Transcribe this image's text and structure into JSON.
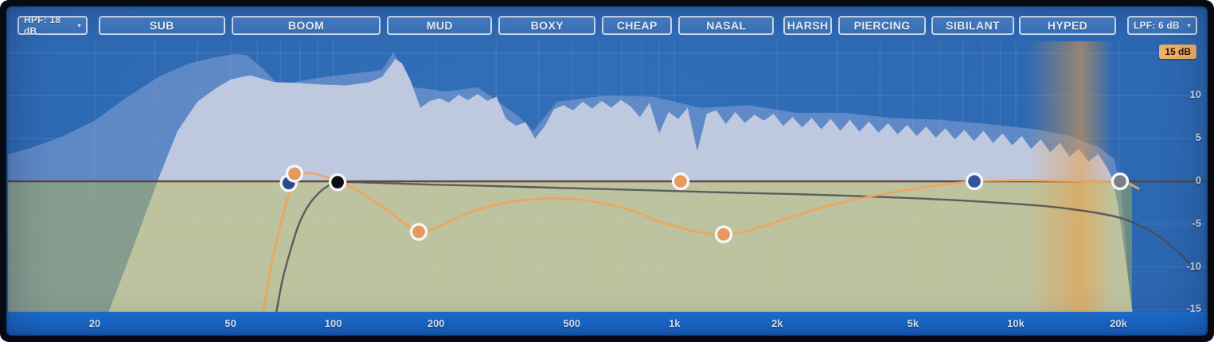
{
  "icons": {
    "caret_down": "▾"
  },
  "toolbar": {
    "hpf": {
      "label": "HPF: 18 dB"
    },
    "lpf": {
      "label": "LPF: 6 dB"
    },
    "bands": [
      {
        "label": "SUB",
        "range_hz": [
          20,
          49
        ]
      },
      {
        "label": "BOOM",
        "range_hz": [
          49,
          140
        ]
      },
      {
        "label": "MUD",
        "range_hz": [
          140,
          297
        ]
      },
      {
        "label": "BOXY",
        "range_hz": [
          297,
          597
        ]
      },
      {
        "label": "CHEAP",
        "range_hz": [
          597,
          1000
        ]
      },
      {
        "label": "NASAL",
        "range_hz": [
          1000,
          1990
        ]
      },
      {
        "label": "HARSH",
        "range_hz": [
          2030,
          2940
        ]
      },
      {
        "label": "PIERCING",
        "range_hz": [
          2940,
          5540
        ]
      },
      {
        "label": "SIBILANT",
        "range_hz": [
          5510,
          10060
        ]
      },
      {
        "label": "HYPED",
        "range_hz": [
          9950,
          20000
        ]
      }
    ]
  },
  "axes": {
    "range_badge": "15 dB",
    "db_ticks": [
      {
        "db": 10,
        "label": "10"
      },
      {
        "db": 5,
        "label": "5"
      },
      {
        "db": 0,
        "label": "0"
      },
      {
        "db": -5,
        "label": "-5"
      },
      {
        "db": -10,
        "label": "-10"
      },
      {
        "db": -15,
        "label": "-15"
      }
    ],
    "freq_ticks": [
      {
        "hz": 20,
        "label": "20"
      },
      {
        "hz": 50,
        "label": "50"
      },
      {
        "hz": 100,
        "label": "100"
      },
      {
        "hz": 200,
        "label": "200"
      },
      {
        "hz": 500,
        "label": "500"
      },
      {
        "hz": 1000,
        "label": "1k"
      },
      {
        "hz": 2000,
        "label": "2k"
      },
      {
        "hz": 5000,
        "label": "5k"
      },
      {
        "hz": 10000,
        "label": "10k"
      },
      {
        "hz": 20000,
        "label": "20k"
      }
    ]
  },
  "colors": {
    "panel_blue": "#2c67b1",
    "strip_blue": "#1b6bd0",
    "button_blue": "#4080c6",
    "border_light": "#e2edf8",
    "badge_orange": "#f1b166"
  },
  "chart_data": {
    "type": "area",
    "x_axis": {
      "scale": "log",
      "unit": "Hz",
      "range": [
        20,
        20000
      ]
    },
    "y_axis": {
      "unit": "dB",
      "range": [
        -15,
        15
      ]
    },
    "grid": {
      "freq_lines": [
        20,
        30,
        40,
        50,
        60,
        70,
        80,
        90,
        100,
        200,
        300,
        400,
        500,
        600,
        700,
        800,
        900,
        1000,
        2000,
        3000,
        4000,
        5000,
        6000,
        7000,
        8000,
        9000,
        10000,
        20000
      ],
      "db_lines": [
        15,
        10,
        5,
        0,
        -5,
        -10,
        -15
      ]
    },
    "zero_line_color": "#5f4036",
    "reduction_zone": {
      "db_top": 0,
      "db_bottom": -15,
      "hz_end": 21900,
      "color": "#bdbd45"
    },
    "highlight_band": {
      "hz_start": 10800,
      "hz_end": 19300,
      "color": "#ed9b40"
    },
    "spectrum_main": {
      "color": "#ccd2e2",
      "points": [
        [
          22,
          -15.2
        ],
        [
          26,
          -7.6
        ],
        [
          31,
          0.7
        ],
        [
          35,
          5.9
        ],
        [
          40,
          9.3
        ],
        [
          45,
          10.8
        ],
        [
          50,
          11.9
        ],
        [
          57,
          12.4
        ],
        [
          67,
          11.6
        ],
        [
          79,
          11.5
        ],
        [
          93,
          11.3
        ],
        [
          109,
          11.2
        ],
        [
          128,
          11.6
        ],
        [
          139,
          12.2
        ],
        [
          152,
          14.3
        ],
        [
          159,
          13.8
        ],
        [
          168,
          11.9
        ],
        [
          180,
          8.6
        ],
        [
          192,
          9.4
        ],
        [
          205,
          9.7
        ],
        [
          218,
          9.2
        ],
        [
          233,
          10.1
        ],
        [
          248,
          9.5
        ],
        [
          265,
          10.2
        ],
        [
          283,
          9.4
        ],
        [
          301,
          9.9
        ],
        [
          321,
          7.3
        ],
        [
          343,
          6.5
        ],
        [
          366,
          6.9
        ],
        [
          390,
          5.0
        ],
        [
          416,
          6.4
        ],
        [
          443,
          8.4
        ],
        [
          473,
          8.9
        ],
        [
          504,
          8.3
        ],
        [
          538,
          9.3
        ],
        [
          574,
          8.5
        ],
        [
          612,
          9.4
        ],
        [
          653,
          8.6
        ],
        [
          696,
          9.5
        ],
        [
          742,
          8.8
        ],
        [
          792,
          7.5
        ],
        [
          845,
          9.2
        ],
        [
          901,
          5.6
        ],
        [
          961,
          8.1
        ],
        [
          1025,
          7.3
        ],
        [
          1093,
          8.6
        ],
        [
          1166,
          3.5
        ],
        [
          1243,
          7.9
        ],
        [
          1326,
          8.3
        ],
        [
          1414,
          6.7
        ],
        [
          1508,
          8.1
        ],
        [
          1608,
          6.8
        ],
        [
          1715,
          7.8
        ],
        [
          1829,
          7.1
        ],
        [
          1951,
          7.9
        ],
        [
          2081,
          6.5
        ],
        [
          2219,
          7.5
        ],
        [
          2367,
          6.3
        ],
        [
          2524,
          7.4
        ],
        [
          2692,
          6.1
        ],
        [
          2871,
          7.3
        ],
        [
          3062,
          5.9
        ],
        [
          3266,
          7.2
        ],
        [
          3483,
          5.8
        ],
        [
          3715,
          7.0
        ],
        [
          3962,
          5.7
        ],
        [
          4226,
          6.8
        ],
        [
          4507,
          5.5
        ],
        [
          4807,
          6.6
        ],
        [
          5126,
          5.3
        ],
        [
          5467,
          6.4
        ],
        [
          5831,
          5.1
        ],
        [
          6219,
          6.2
        ],
        [
          6633,
          4.9
        ],
        [
          7074,
          6.0
        ],
        [
          7544,
          4.7
        ],
        [
          8046,
          5.9
        ],
        [
          8582,
          4.5
        ],
        [
          9152,
          5.6
        ],
        [
          9761,
          4.2
        ],
        [
          10410,
          5.3
        ],
        [
          11103,
          3.8
        ],
        [
          11842,
          4.9
        ],
        [
          12629,
          3.4
        ],
        [
          13469,
          4.5
        ],
        [
          14365,
          2.9
        ],
        [
          15321,
          3.8
        ],
        [
          16340,
          2.3
        ],
        [
          17427,
          3.2
        ],
        [
          18586,
          1.5
        ],
        [
          19196,
          0.3
        ],
        [
          19825,
          -2.4
        ],
        [
          20366,
          -5.3
        ],
        [
          20815,
          -8.1
        ],
        [
          21273,
          -10.8
        ],
        [
          21620,
          -13.0
        ],
        [
          21971,
          -15.2
        ]
      ]
    },
    "spectrum_secondary": {
      "color": "#8ea6d8",
      "points": [
        [
          11,
          3.1
        ],
        [
          13,
          3.9
        ],
        [
          16,
          5.2
        ],
        [
          20,
          7.1
        ],
        [
          25,
          9.9
        ],
        [
          31,
          12.3
        ],
        [
          38,
          13.8
        ],
        [
          45,
          14.5
        ],
        [
          52,
          14.9
        ],
        [
          56,
          14.7
        ],
        [
          62,
          13.2
        ],
        [
          69,
          11.3
        ],
        [
          91,
          12.1
        ],
        [
          139,
          13.0
        ],
        [
          150,
          15.1
        ],
        [
          172,
          11.0
        ],
        [
          214,
          10.5
        ],
        [
          265,
          11.0
        ],
        [
          347,
          7.7
        ],
        [
          386,
          5.9
        ],
        [
          453,
          9.3
        ],
        [
          626,
          10.0
        ],
        [
          864,
          9.9
        ],
        [
          1192,
          8.6
        ],
        [
          1645,
          8.9
        ],
        [
          2272,
          8.0
        ],
        [
          3135,
          8.0
        ],
        [
          4326,
          7.4
        ],
        [
          5971,
          7.2
        ],
        [
          8242,
          6.7
        ],
        [
          11376,
          6.1
        ],
        [
          14104,
          5.4
        ],
        [
          17480,
          4.0
        ],
        [
          19470,
          2.6
        ],
        [
          20325,
          -1.1
        ],
        [
          20992,
          -6.7
        ],
        [
          21562,
          -15.2
        ]
      ]
    },
    "eq_curve": {
      "color": "#f0a45c",
      "points": [
        [
          62,
          -15.5
        ],
        [
          64,
          -12.5
        ],
        [
          66,
          -9.5
        ],
        [
          69,
          -6.2
        ],
        [
          72,
          -3.2
        ],
        [
          75,
          -1.0
        ],
        [
          78,
          0.4
        ],
        [
          82,
          0.9
        ],
        [
          88,
          0.9
        ],
        [
          95,
          0.5
        ],
        [
          103,
          0.0
        ],
        [
          112,
          -0.6
        ],
        [
          125,
          -1.7
        ],
        [
          142,
          -3.2
        ],
        [
          160,
          -4.8
        ],
        [
          178,
          -5.9
        ],
        [
          200,
          -5.4
        ],
        [
          230,
          -4.3
        ],
        [
          270,
          -3.2
        ],
        [
          330,
          -2.4
        ],
        [
          420,
          -2.0
        ],
        [
          520,
          -2.1
        ],
        [
          640,
          -2.7
        ],
        [
          776,
          -3.6
        ],
        [
          900,
          -4.7
        ],
        [
          1040,
          -5.4
        ],
        [
          1200,
          -6.0
        ],
        [
          1393,
          -6.2
        ],
        [
          1600,
          -5.9
        ],
        [
          1900,
          -5.0
        ],
        [
          2300,
          -3.9
        ],
        [
          2800,
          -2.9
        ],
        [
          3500,
          -2.0
        ],
        [
          4500,
          -1.2
        ],
        [
          5800,
          -0.5
        ],
        [
          7565,
          0.0
        ],
        [
          9500,
          0.1
        ],
        [
          12000,
          0.1
        ],
        [
          16000,
          0.0
        ],
        [
          20200,
          0.0
        ],
        [
          21500,
          -0.3
        ],
        [
          23000,
          -0.9
        ]
      ]
    },
    "filter_curve": {
      "color": "#4b4b52",
      "points": [
        [
          68,
          -15.5
        ],
        [
          71,
          -11.5
        ],
        [
          75,
          -8.0
        ],
        [
          79,
          -5.2
        ],
        [
          84,
          -3.0
        ],
        [
          90,
          -1.5
        ],
        [
          96,
          -0.6
        ],
        [
          103,
          -0.1
        ],
        [
          140,
          -0.2
        ],
        [
          200,
          -0.4
        ],
        [
          265,
          -0.5
        ],
        [
          400,
          -0.7
        ],
        [
          776,
          -1.0
        ],
        [
          1400,
          -1.3
        ],
        [
          2272,
          -1.5
        ],
        [
          3900,
          -1.8
        ],
        [
          6650,
          -2.2
        ],
        [
          11376,
          -2.8
        ],
        [
          14886,
          -3.3
        ],
        [
          19470,
          -4.1
        ],
        [
          22878,
          -5.1
        ],
        [
          26900,
          -6.7
        ],
        [
          30740,
          -8.7
        ],
        [
          34200,
          -10.6
        ]
      ]
    },
    "nodes": [
      {
        "hz": 74,
        "db": -0.2,
        "color": "#2a4a8c"
      },
      {
        "hz": 77,
        "db": 0.9,
        "color": "#e6985e"
      },
      {
        "hz": 103,
        "db": -0.1,
        "color": "#0d0d10"
      },
      {
        "hz": 178,
        "db": -5.9,
        "color": "#e6985e"
      },
      {
        "hz": 1042,
        "db": 0,
        "color": "#e6985e"
      },
      {
        "hz": 1393,
        "db": -6.2,
        "color": "#e6985e"
      },
      {
        "hz": 7565,
        "db": 0,
        "color": "#35549e"
      },
      {
        "hz": 20200,
        "db": 0,
        "color": "#7b8088"
      }
    ]
  }
}
